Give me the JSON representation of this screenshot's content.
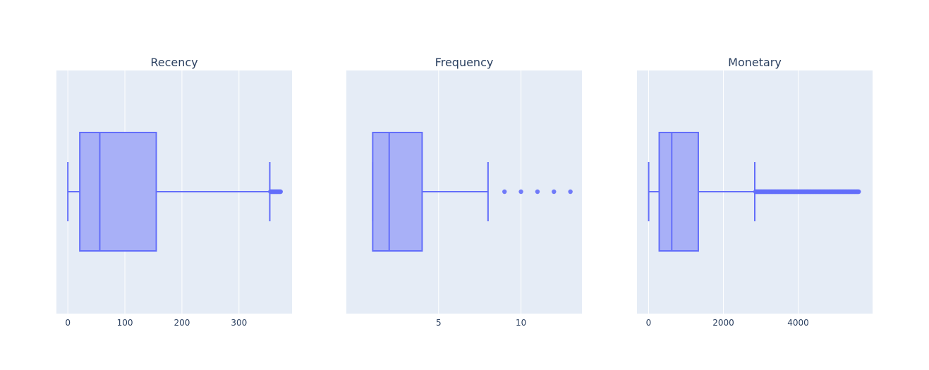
{
  "chart_data": [
    {
      "type": "box",
      "title": "Recency",
      "orientation": "horizontal",
      "xlim": [
        -20,
        393
      ],
      "ticks": [
        0,
        100,
        200,
        300
      ],
      "stats": {
        "min": 0,
        "q1": 21,
        "median": 56,
        "q3": 155,
        "upper_fence": 354
      },
      "outliers": [
        355,
        356,
        357,
        358,
        359,
        360,
        361,
        362,
        363,
        364,
        365,
        366,
        367,
        368,
        369,
        370,
        371,
        372,
        373
      ],
      "color": "#636efa",
      "fill": "#a4adf7",
      "background": "#e5ecf6",
      "grid": true
    },
    {
      "type": "box",
      "title": "Frequency",
      "orientation": "horizontal",
      "xlim": [
        -0.6,
        13.7
      ],
      "ticks": [
        5,
        10
      ],
      "stats": {
        "min": 1,
        "q1": 1,
        "median": 2,
        "q3": 4,
        "upper_fence": 8
      },
      "outliers": [
        9,
        10,
        11,
        12,
        13
      ],
      "color": "#636efa",
      "fill": "#a4adf7",
      "background": "#e5ecf6",
      "grid": true
    },
    {
      "type": "box",
      "title": "Monetary",
      "orientation": "horizontal",
      "xlim": [
        -310,
        5990
      ],
      "ticks": [
        0,
        2000,
        4000
      ],
      "stats": {
        "min": 3,
        "q1": 285,
        "median": 620,
        "q3": 1330,
        "upper_fence": 2840
      },
      "outliers_range": [
        2860,
        5620
      ],
      "color": "#636efa",
      "fill": "#a4adf7",
      "background": "#e5ecf6",
      "grid": true
    }
  ]
}
